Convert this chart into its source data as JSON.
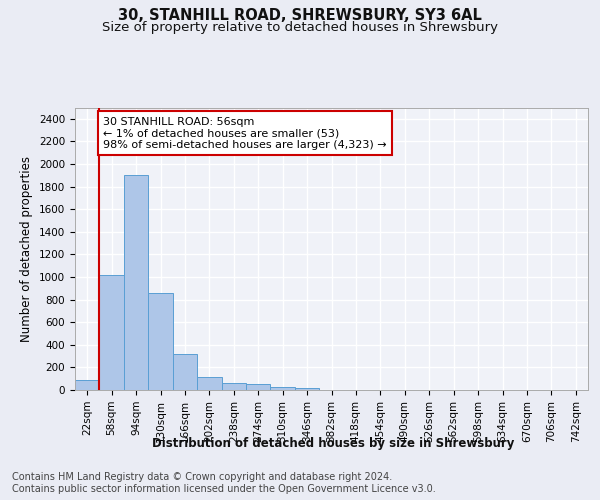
{
  "title1": "30, STANHILL ROAD, SHREWSBURY, SY3 6AL",
  "title2": "Size of property relative to detached houses in Shrewsbury",
  "xlabel": "Distribution of detached houses by size in Shrewsbury",
  "ylabel": "Number of detached properties",
  "bin_labels": [
    "22sqm",
    "58sqm",
    "94sqm",
    "130sqm",
    "166sqm",
    "202sqm",
    "238sqm",
    "274sqm",
    "310sqm",
    "346sqm",
    "382sqm",
    "418sqm",
    "454sqm",
    "490sqm",
    "526sqm",
    "562sqm",
    "598sqm",
    "634sqm",
    "670sqm",
    "706sqm",
    "742sqm"
  ],
  "bar_heights": [
    90,
    1020,
    1900,
    860,
    315,
    115,
    58,
    50,
    28,
    18,
    0,
    0,
    0,
    0,
    0,
    0,
    0,
    0,
    0,
    0,
    0
  ],
  "bar_color": "#aec6e8",
  "bar_edge_color": "#5a9fd4",
  "vline_x_idx": 1,
  "vline_color": "#cc0000",
  "annotation_text": "30 STANHILL ROAD: 56sqm\n← 1% of detached houses are smaller (53)\n98% of semi-detached houses are larger (4,323) →",
  "annotation_box_color": "#ffffff",
  "annotation_box_edgecolor": "#cc0000",
  "ylim": [
    0,
    2500
  ],
  "yticks": [
    0,
    200,
    400,
    600,
    800,
    1000,
    1200,
    1400,
    1600,
    1800,
    2000,
    2200,
    2400
  ],
  "footer1": "Contains HM Land Registry data © Crown copyright and database right 2024.",
  "footer2": "Contains public sector information licensed under the Open Government Licence v3.0.",
  "bg_color": "#eaecf4",
  "plot_bg_color": "#f0f2f8",
  "grid_color": "#ffffff",
  "title_fontsize": 10.5,
  "subtitle_fontsize": 9.5,
  "axis_label_fontsize": 8.5,
  "tick_fontsize": 7.5,
  "annotation_fontsize": 8,
  "footer_fontsize": 7
}
